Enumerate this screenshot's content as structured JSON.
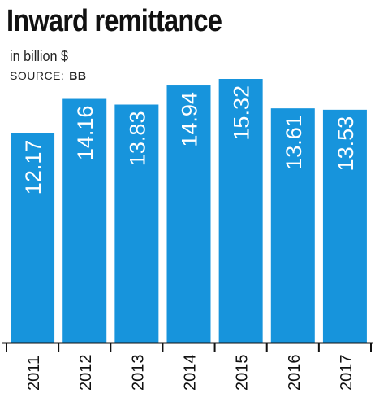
{
  "header": {
    "title": "Inward remittance",
    "subtitle": "in billion $",
    "source_label": "SOURCE:",
    "source_name": "BB"
  },
  "colors": {
    "bar": "#1794dc",
    "bar_label": "#ffffff",
    "axis": "#111111"
  },
  "chart_data": {
    "type": "bar",
    "title": "Inward remittance",
    "ylabel": "in billion $",
    "categories": [
      "2011",
      "2012",
      "2013",
      "2014",
      "2015",
      "2016",
      "2017"
    ],
    "values": [
      12.17,
      14.16,
      13.83,
      14.94,
      15.32,
      13.61,
      13.53
    ],
    "value_labels": [
      "12.17",
      "14.16",
      "13.83",
      "14.94",
      "15.32",
      "13.61",
      "13.53"
    ],
    "ylim": [
      0,
      15.32
    ],
    "grid": false,
    "legend": "none"
  }
}
